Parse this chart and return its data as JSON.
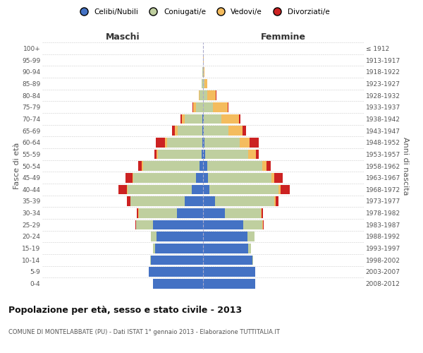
{
  "age_groups": [
    "100+",
    "95-99",
    "90-94",
    "85-89",
    "80-84",
    "75-79",
    "70-74",
    "65-69",
    "60-64",
    "55-59",
    "50-54",
    "45-49",
    "40-44",
    "35-39",
    "30-34",
    "25-29",
    "20-24",
    "15-19",
    "10-14",
    "5-9",
    "0-4"
  ],
  "birth_years": [
    "≤ 1912",
    "1913-1917",
    "1918-1922",
    "1923-1927",
    "1928-1932",
    "1933-1937",
    "1938-1942",
    "1943-1947",
    "1948-1952",
    "1953-1957",
    "1958-1962",
    "1963-1967",
    "1968-1972",
    "1973-1977",
    "1978-1982",
    "1983-1987",
    "1988-1992",
    "1993-1997",
    "1998-2002",
    "2003-2007",
    "2008-2012"
  ],
  "colors": {
    "celibi_nubili": "#4472C4",
    "coniugati": "#BFCF9F",
    "vedovi": "#F4BC5E",
    "divorziati": "#CC2222"
  },
  "title": "Popolazione per età, sesso e stato civile - 2013",
  "subtitle": "COMUNE DI MONTELABBATE (PU) - Dati ISTAT 1° gennaio 2013 - Elaborazione TUTTITALIA.IT",
  "xlabel_left": "Maschi",
  "xlabel_right": "Femmine",
  "ylabel_left": "Fasce di età",
  "ylabel_right": "Anni di nascita",
  "xlim": 400,
  "legend_labels": [
    "Celibi/Nubili",
    "Coniugati/e",
    "Vedovi/e",
    "Divorziati/e"
  ],
  "background_color": "#ffffff",
  "grid_color": "#cccccc",
  "males_celibi": [
    125,
    135,
    130,
    120,
    115,
    125,
    65,
    45,
    28,
    18,
    8,
    4,
    2,
    1,
    1,
    0,
    0,
    0,
    0,
    0,
    0
  ],
  "males_coniugati": [
    0,
    0,
    2,
    5,
    15,
    42,
    95,
    135,
    160,
    155,
    142,
    108,
    88,
    62,
    44,
    18,
    8,
    3,
    1,
    0,
    0
  ],
  "males_vedovi": [
    0,
    0,
    0,
    0,
    0,
    0,
    1,
    1,
    2,
    2,
    2,
    3,
    5,
    7,
    8,
    6,
    2,
    1,
    0,
    0,
    0
  ],
  "males_divorziati": [
    0,
    0,
    0,
    0,
    0,
    2,
    4,
    8,
    20,
    18,
    10,
    6,
    22,
    8,
    3,
    2,
    1,
    0,
    0,
    0,
    0
  ],
  "females_nubili": [
    130,
    130,
    122,
    112,
    110,
    100,
    55,
    30,
    16,
    12,
    10,
    5,
    3,
    2,
    1,
    0,
    0,
    0,
    0,
    0,
    0
  ],
  "females_coniugate": [
    0,
    0,
    2,
    8,
    18,
    48,
    88,
    148,
    172,
    158,
    138,
    108,
    88,
    62,
    44,
    24,
    10,
    3,
    1,
    0,
    0
  ],
  "females_vedove": [
    0,
    0,
    0,
    0,
    0,
    1,
    2,
    3,
    5,
    8,
    10,
    18,
    25,
    35,
    44,
    38,
    22,
    8,
    2,
    1,
    0
  ],
  "females_divorziate": [
    0,
    0,
    0,
    0,
    0,
    2,
    4,
    6,
    22,
    20,
    10,
    8,
    22,
    8,
    4,
    2,
    1,
    0,
    0,
    0,
    0
  ]
}
